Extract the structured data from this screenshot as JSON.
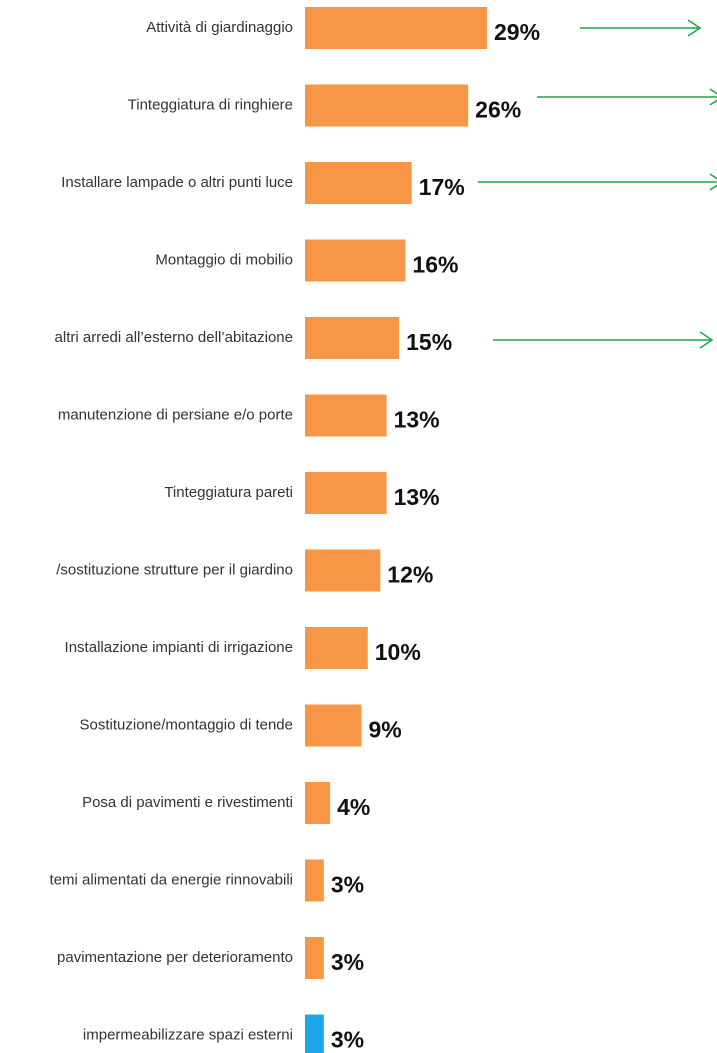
{
  "chart_data": {
    "type": "bar",
    "orientation": "horizontal",
    "categories": [
      "Attività di giardinaggio",
      "Tinteggiatura di ringhiere",
      "Installare lampade o altri punti luce",
      "Montaggio di mobilio",
      "altri arredi all’esterno dell’abitazione",
      "manutenzione di persiane e/o porte",
      "Tinteggiatura pareti",
      "/sostituzione strutture per il giardino",
      "Installazione impianti di irrigazione",
      "Sostituzione/montaggio di tende",
      "Posa di pavimenti e rivestimenti",
      "temi alimentati da energie rinnovabili",
      "pavimentazione per deterioramento",
      "impermeabilizzare spazi esterni"
    ],
    "values": [
      29,
      26,
      17,
      16,
      15,
      13,
      13,
      12,
      10,
      9,
      4,
      3,
      3,
      3
    ],
    "value_labels": [
      "29%",
      "26%",
      "17%",
      "16%",
      "15%",
      "13%",
      "13%",
      "12%",
      "10%",
      "9%",
      "4%",
      "3%",
      "3%",
      "3%"
    ],
    "colors": [
      "#f79646",
      "#f79646",
      "#f79646",
      "#f79646",
      "#f79646",
      "#f79646",
      "#f79646",
      "#f79646",
      "#f79646",
      "#f79646",
      "#f79646",
      "#f79646",
      "#f79646",
      "#1ea7e8"
    ]
  }
}
